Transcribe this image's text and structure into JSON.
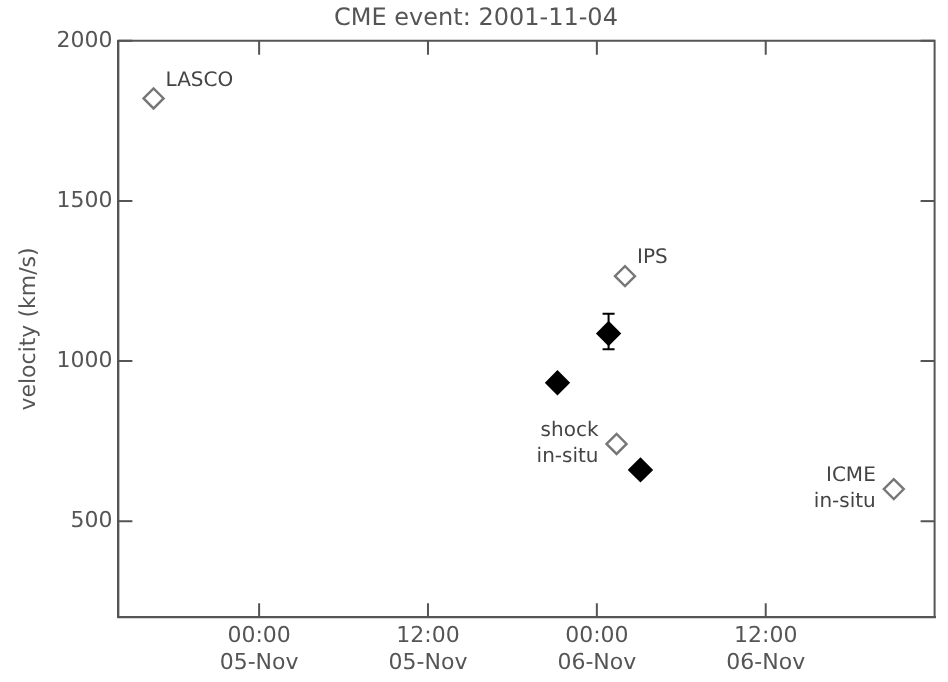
{
  "chart_data": {
    "type": "scatter",
    "title": "CME event: 2001-11-04",
    "ylabel": "velocity (km/s)",
    "xlim": [
      "2001-11-04T14:00",
      "2001-11-07T00:00"
    ],
    "xticks": [
      {
        "value": "2001-11-05T00:00",
        "label": "00:00\n05-Nov"
      },
      {
        "value": "2001-11-05T12:00",
        "label": "12:00\n05-Nov"
      },
      {
        "value": "2001-11-06T00:00",
        "label": "00:00\n06-Nov"
      },
      {
        "value": "2001-11-06T12:00",
        "label": "12:00\n06-Nov"
      }
    ],
    "ylim": [
      200,
      2000
    ],
    "yticks": [
      500,
      1000,
      1500,
      2000
    ],
    "grid": false,
    "marker": "diamond",
    "series": [
      {
        "color": "#777777",
        "x": [
          "2001-11-04T16:30",
          "2001-11-06T02:00",
          "2001-11-06T01:24",
          "2001-11-06T21:06"
        ],
        "values": [
          1820,
          1265,
          741,
          600
        ]
      },
      {
        "color": "#000000",
        "x": [
          "2001-11-05T21:12",
          "2001-11-06T00:50",
          "2001-11-06T03:06"
        ],
        "values": [
          932,
          1086,
          660
        ],
        "errors": [
          null,
          [
            1037,
            1148
          ],
          null
        ]
      }
    ],
    "annotations": [
      {
        "text": "LASCO",
        "x": "2001-11-04T16:30",
        "y": 1820
      },
      {
        "text": "IPS",
        "x": "2001-11-06T02:00",
        "y": 1265
      },
      {
        "text": "shock\nin-situ",
        "x": "2001-11-06T01:24",
        "y": 741
      },
      {
        "text": "ICME\nin-situ",
        "x": "2001-11-06T21:06",
        "y": 600
      }
    ]
  }
}
